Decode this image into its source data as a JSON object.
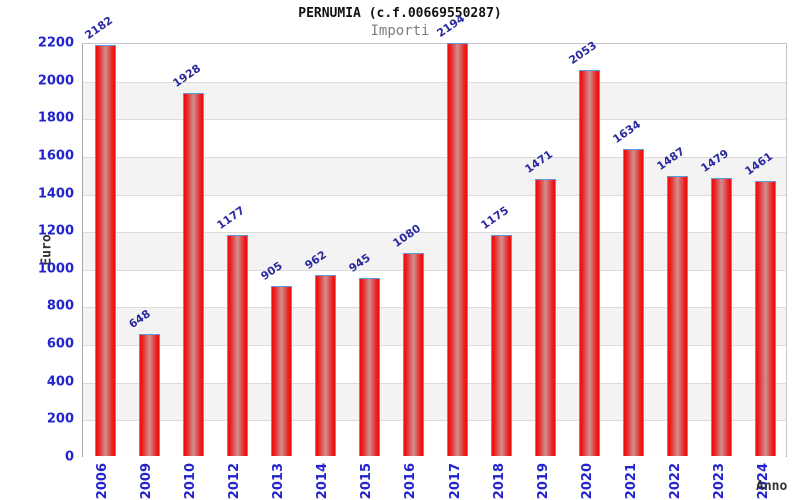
{
  "chart_data": {
    "type": "bar",
    "title": "PERNUMIA (c.f.00669550287)",
    "subtitle": "Importi",
    "categories": [
      "2006",
      "2009",
      "2010",
      "2012",
      "2013",
      "2014",
      "2015",
      "2016",
      "2017",
      "2018",
      "2019",
      "2020",
      "2021",
      "2022",
      "2023",
      "2024"
    ],
    "values": [
      2182,
      648,
      1928,
      1177,
      905,
      962,
      945,
      1080,
      2194,
      1175,
      1471,
      2053,
      1634,
      1487,
      1479,
      1461
    ],
    "xlabel": "Anno",
    "ylabel": "Euro",
    "ylim": [
      0,
      2200
    ],
    "ytick_step": 200,
    "yticks": [
      0,
      200,
      400,
      600,
      800,
      1000,
      1200,
      1400,
      1600,
      1800,
      2000,
      2200
    ],
    "grid": true,
    "legend": "none",
    "colors": {
      "bar_edge": "#ee1212",
      "bar_center": "#cf8f8f",
      "bar_border": "#5b9bd5",
      "value_label": "#2a2a9e",
      "tick_label": "#2323cd",
      "axis_label": "#333333",
      "title_color": "#111111",
      "subtitle_color": "#808080",
      "band_gray": "#f3f3f3",
      "band_white": "#ffffff",
      "gridline": "#dcdcdc"
    }
  }
}
